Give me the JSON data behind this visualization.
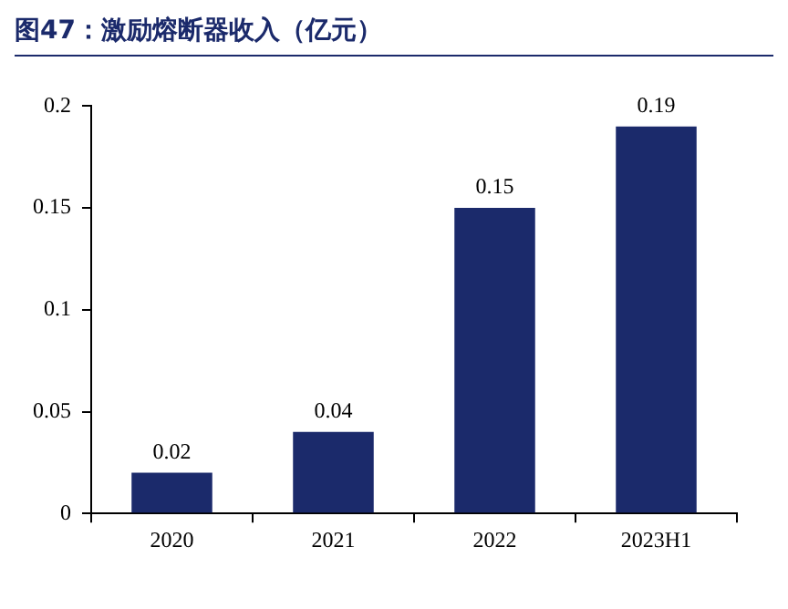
{
  "chart_data": {
    "type": "bar",
    "title": "图47：激励熔断器收入（亿元）",
    "categories": [
      "2020",
      "2021",
      "2022",
      "2023H1"
    ],
    "values": [
      0.02,
      0.04,
      0.15,
      0.19
    ],
    "color": "#1b2a6b",
    "ylim": [
      0,
      0.2
    ],
    "yticks": [
      0,
      0.05,
      0.1,
      0.15,
      0.2
    ],
    "grid": false,
    "data_labels": true
  }
}
